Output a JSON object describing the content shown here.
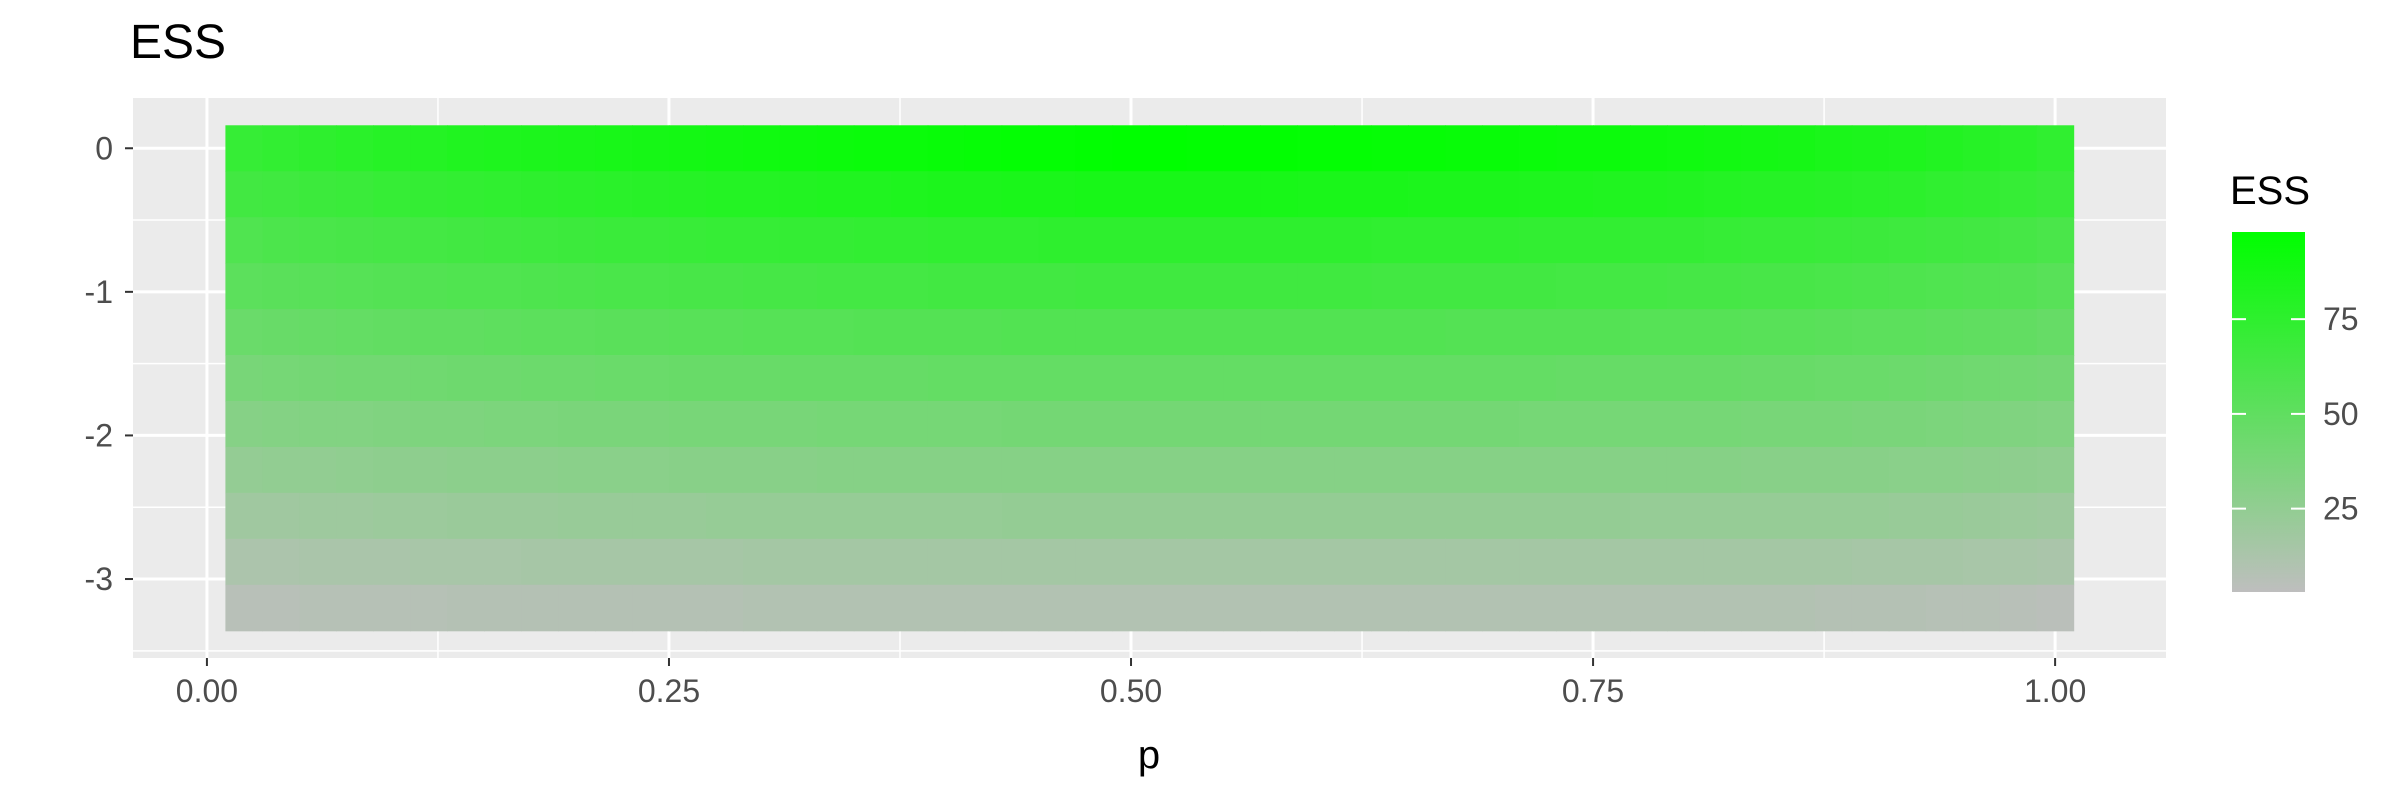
{
  "chart_data": {
    "type": "heatmap",
    "title": "ESS",
    "xlabel": "p",
    "ylabel": "",
    "x_ticks": [
      "0.00",
      "0.25",
      "0.50",
      "0.75",
      "1.00"
    ],
    "x_tick_values": [
      0.0,
      0.25,
      0.5,
      0.75,
      1.0
    ],
    "y_ticks": [
      "0",
      "-1",
      "-2",
      "-3"
    ],
    "y_tick_values": [
      0,
      -1,
      -2,
      -3
    ],
    "xlim": [
      -0.04,
      1.06
    ],
    "ylim": [
      -3.55,
      0.35
    ],
    "grid": true,
    "legend": {
      "title": "ESS",
      "position": "right",
      "ticks": [
        "25",
        "50",
        "75"
      ],
      "tick_values": [
        25,
        50,
        75
      ],
      "range": [
        3,
        98
      ],
      "low_color": "#BEBEBE",
      "high_color": "#00FF00"
    },
    "x": [
      0.02,
      0.04,
      0.06,
      0.08,
      0.1,
      0.12,
      0.14,
      0.16,
      0.18,
      0.2,
      0.22,
      0.24,
      0.26,
      0.28,
      0.3,
      0.32,
      0.34,
      0.36,
      0.38,
      0.4,
      0.42,
      0.44,
      0.46,
      0.48,
      0.5,
      0.52,
      0.54,
      0.56,
      0.58,
      0.6,
      0.62,
      0.64,
      0.66,
      0.68,
      0.7,
      0.72,
      0.74,
      0.76,
      0.78,
      0.8,
      0.82,
      0.84,
      0.86,
      0.88,
      0.9,
      0.92,
      0.94,
      0.96,
      0.98,
      1.0
    ],
    "y": [
      0,
      -0.32,
      -0.64,
      -0.96,
      -1.28,
      -1.6,
      -1.92,
      -2.24,
      -2.56,
      -2.88,
      -3.2
    ],
    "z": [
      [
        71,
        73,
        75,
        77,
        79,
        80,
        82,
        83,
        84,
        85,
        86,
        87,
        88,
        89,
        90,
        91,
        92,
        93,
        93,
        94,
        95,
        96,
        96,
        97,
        98,
        98,
        97,
        97,
        97,
        96,
        96,
        95,
        95,
        94,
        94,
        93,
        92,
        92,
        91,
        90,
        89,
        88,
        87,
        85,
        84,
        83,
        81,
        79,
        77,
        74
      ],
      [
        65,
        66,
        68,
        69,
        71,
        72,
        73,
        74,
        75,
        76,
        77,
        78,
        79,
        80,
        80,
        81,
        82,
        82,
        83,
        84,
        84,
        85,
        85,
        86,
        86,
        86,
        86,
        86,
        86,
        85,
        85,
        85,
        84,
        84,
        84,
        83,
        83,
        82,
        82,
        81,
        80,
        79,
        79,
        78,
        77,
        76,
        74,
        73,
        71,
        69
      ],
      [
        58,
        60,
        61,
        62,
        63,
        64,
        65,
        66,
        67,
        68,
        69,
        69,
        70,
        71,
        71,
        72,
        72,
        73,
        73,
        74,
        74,
        74,
        75,
        75,
        75,
        75,
        75,
        75,
        75,
        75,
        75,
        74,
        74,
        74,
        74,
        73,
        73,
        73,
        72,
        72,
        71,
        70,
        70,
        69,
        68,
        67,
        66,
        65,
        63,
        61
      ],
      [
        52,
        53,
        54,
        55,
        56,
        57,
        58,
        58,
        59,
        60,
        61,
        61,
        62,
        62,
        63,
        63,
        64,
        64,
        64,
        65,
        65,
        65,
        65,
        66,
        66,
        66,
        66,
        66,
        66,
        66,
        66,
        65,
        65,
        65,
        65,
        65,
        64,
        64,
        64,
        63,
        63,
        62,
        62,
        61,
        60,
        59,
        58,
        57,
        56,
        54
      ],
      [
        45,
        46,
        47,
        48,
        49,
        50,
        50,
        51,
        52,
        52,
        53,
        53,
        54,
        54,
        55,
        55,
        55,
        56,
        56,
        56,
        56,
        57,
        57,
        57,
        57,
        57,
        57,
        57,
        57,
        57,
        57,
        57,
        57,
        56,
        56,
        56,
        56,
        56,
        55,
        55,
        55,
        54,
        54,
        53,
        52,
        52,
        51,
        50,
        49,
        47
      ],
      [
        38,
        39,
        40,
        41,
        41,
        42,
        43,
        43,
        44,
        44,
        45,
        45,
        46,
        46,
        46,
        47,
        47,
        47,
        47,
        48,
        48,
        48,
        48,
        48,
        48,
        48,
        48,
        48,
        48,
        48,
        48,
        48,
        48,
        48,
        48,
        48,
        47,
        47,
        47,
        47,
        47,
        46,
        46,
        45,
        45,
        44,
        43,
        42,
        41,
        40
      ],
      [
        31,
        32,
        33,
        33,
        34,
        35,
        35,
        36,
        36,
        37,
        37,
        37,
        38,
        38,
        38,
        38,
        39,
        39,
        39,
        39,
        39,
        40,
        40,
        40,
        40,
        40,
        40,
        40,
        40,
        40,
        40,
        40,
        40,
        40,
        40,
        39,
        39,
        39,
        39,
        39,
        39,
        38,
        38,
        38,
        37,
        37,
        36,
        35,
        34,
        33
      ],
      [
        24,
        25,
        25,
        26,
        27,
        27,
        28,
        28,
        28,
        29,
        29,
        29,
        30,
        30,
        30,
        30,
        31,
        31,
        31,
        31,
        31,
        31,
        31,
        31,
        31,
        31,
        31,
        31,
        31,
        31,
        31,
        31,
        31,
        31,
        31,
        31,
        31,
        31,
        31,
        31,
        31,
        30,
        30,
        30,
        30,
        29,
        29,
        28,
        27,
        26
      ],
      [
        18,
        18,
        19,
        19,
        20,
        20,
        21,
        21,
        21,
        22,
        22,
        22,
        22,
        23,
        23,
        23,
        23,
        23,
        23,
        23,
        23,
        24,
        24,
        24,
        24,
        24,
        24,
        24,
        24,
        24,
        24,
        24,
        24,
        24,
        24,
        24,
        24,
        24,
        23,
        23,
        23,
        23,
        23,
        23,
        23,
        22,
        22,
        21,
        20,
        19
      ],
      [
        12,
        12,
        13,
        13,
        13,
        14,
        14,
        14,
        15,
        15,
        15,
        15,
        15,
        15,
        16,
        16,
        16,
        16,
        16,
        16,
        16,
        16,
        16,
        16,
        16,
        16,
        16,
        16,
        16,
        16,
        16,
        16,
        16,
        16,
        16,
        16,
        16,
        16,
        16,
        16,
        16,
        16,
        16,
        16,
        15,
        15,
        15,
        14,
        14,
        13
      ],
      [
        6,
        6,
        7,
        7,
        7,
        7,
        8,
        8,
        8,
        8,
        8,
        8,
        8,
        8,
        9,
        9,
        9,
        9,
        9,
        9,
        9,
        9,
        9,
        9,
        9,
        9,
        9,
        9,
        9,
        9,
        9,
        9,
        9,
        9,
        9,
        9,
        9,
        9,
        9,
        9,
        9,
        9,
        9,
        8,
        8,
        8,
        7,
        7,
        6,
        5
      ]
    ]
  }
}
